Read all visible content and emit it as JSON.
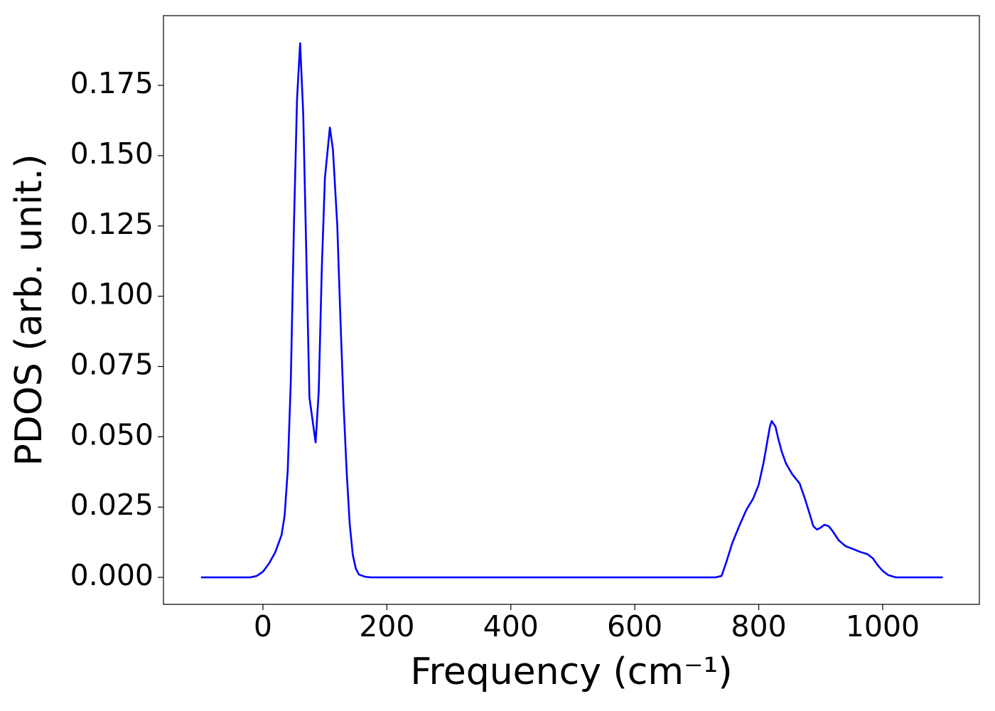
{
  "chart_data": {
    "type": "line",
    "xlabel": "Frequency (cm⁻¹)",
    "ylabel": "PDOS (arb. unit.)",
    "xlim": [
      -160.5,
      1156
    ],
    "ylim": [
      -0.0096,
      0.1998
    ],
    "xticks": [
      0,
      200,
      400,
      600,
      800,
      1000
    ],
    "yticks": [
      {
        "value": 0,
        "label": "0.000"
      },
      0.025,
      {
        "value": 0.05,
        "label": "0.050"
      },
      0.075,
      {
        "value": 0.1,
        "label": "0.100"
      },
      0.125,
      {
        "value": 0.15,
        "label": "0.150"
      },
      0.175
    ],
    "grid": false,
    "x": [
      -100,
      -20,
      -10,
      0,
      10,
      20,
      30,
      35,
      40,
      45,
      50,
      55,
      60,
      65,
      70,
      75,
      85,
      90,
      95,
      100,
      108,
      113,
      120,
      125,
      130,
      135,
      140,
      145,
      150,
      155,
      165,
      175,
      700,
      730,
      740,
      748,
      757,
      768,
      780,
      791,
      800,
      808,
      814,
      818,
      821,
      827,
      831,
      837,
      844,
      854,
      866,
      874,
      883,
      888,
      894,
      900,
      906,
      913,
      920,
      929,
      940,
      952,
      963,
      975,
      984,
      992,
      1000,
      1009,
      1021,
      1097
    ],
    "series": [
      {
        "name": "PDOS",
        "color": "#0000ff",
        "values": [
          0,
          0,
          0.0005,
          0.002,
          0.005,
          0.009,
          0.015,
          0.022,
          0.038,
          0.07,
          0.125,
          0.17,
          0.19,
          0.165,
          0.115,
          0.064,
          0.048,
          0.066,
          0.11,
          0.142,
          0.16,
          0.152,
          0.125,
          0.092,
          0.062,
          0.038,
          0.019,
          0.008,
          0.003,
          0.001,
          0.0002,
          0,
          0,
          0,
          0.0005,
          0.0056,
          0.012,
          0.018,
          0.024,
          0.028,
          0.033,
          0.041,
          0.0486,
          0.0536,
          0.0556,
          0.0536,
          0.0498,
          0.0448,
          0.0405,
          0.0367,
          0.0334,
          0.0283,
          0.022,
          0.0182,
          0.017,
          0.0177,
          0.0187,
          0.0182,
          0.0162,
          0.0132,
          0.0111,
          0.0101,
          0.0091,
          0.0083,
          0.0068,
          0.0043,
          0.0023,
          0.0008,
          0,
          0
        ]
      }
    ]
  }
}
